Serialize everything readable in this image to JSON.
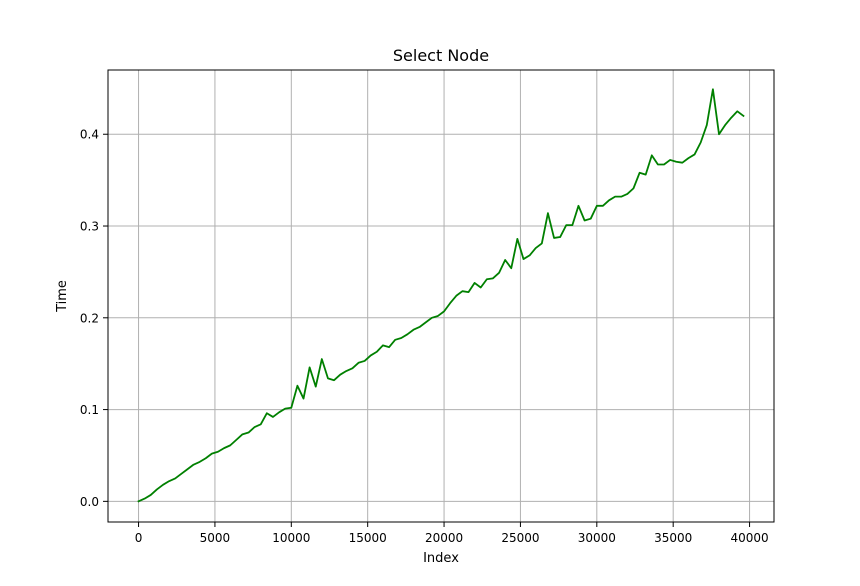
{
  "chart_data": {
    "type": "line",
    "title": "Select Node",
    "xlabel": "Index",
    "ylabel": "Time",
    "xlim": [
      -2000,
      41600
    ],
    "ylim": [
      -0.0225,
      0.47
    ],
    "xticks": [
      0,
      5000,
      10000,
      15000,
      20000,
      25000,
      30000,
      35000,
      40000
    ],
    "yticks": [
      0.0,
      0.1,
      0.2,
      0.3,
      0.4
    ],
    "xtick_labels": [
      "0",
      "5000",
      "10000",
      "15000",
      "20000",
      "25000",
      "30000",
      "35000",
      "40000"
    ],
    "ytick_labels": [
      "0.0",
      "0.1",
      "0.2",
      "0.3",
      "0.4"
    ],
    "grid": true,
    "line_color": "#008000",
    "series": [
      {
        "x": [
          0,
          400,
          800,
          1200,
          1600,
          2000,
          2400,
          2800,
          3200,
          3600,
          4000,
          4400,
          4800,
          5200,
          5600,
          6000,
          6400,
          6800,
          7200,
          7600,
          8000,
          8400,
          8800,
          9200,
          9600,
          10000,
          10400,
          10800,
          11200,
          11600,
          12000,
          12400,
          12800,
          13200,
          13600,
          14000,
          14400,
          14800,
          15200,
          15600,
          16000,
          16400,
          16800,
          17200,
          17600,
          18000,
          18400,
          18800,
          19200,
          19600,
          20000,
          20400,
          20800,
          21200,
          21600,
          22000,
          22400,
          22800,
          23200,
          23600,
          24000,
          24400,
          24800,
          25200,
          25600,
          26000,
          26400,
          26800,
          27200,
          27600,
          28000,
          28400,
          28800,
          29200,
          29600,
          30000,
          30400,
          30800,
          31200,
          31600,
          32000,
          32400,
          32800,
          33200,
          33600,
          34000,
          34400,
          34800,
          35200,
          35600,
          36000,
          36400,
          36800,
          37200,
          37600,
          38000,
          38400,
          38800,
          39200,
          39600
        ],
        "values": [
          0.0,
          0.003,
          0.007,
          0.013,
          0.018,
          0.022,
          0.025,
          0.03,
          0.035,
          0.04,
          0.043,
          0.047,
          0.052,
          0.054,
          0.058,
          0.061,
          0.067,
          0.073,
          0.075,
          0.081,
          0.084,
          0.096,
          0.092,
          0.097,
          0.101,
          0.102,
          0.126,
          0.112,
          0.146,
          0.125,
          0.155,
          0.134,
          0.132,
          0.138,
          0.142,
          0.145,
          0.151,
          0.153,
          0.159,
          0.163,
          0.17,
          0.168,
          0.176,
          0.178,
          0.182,
          0.187,
          0.19,
          0.195,
          0.2,
          0.202,
          0.207,
          0.216,
          0.224,
          0.229,
          0.228,
          0.238,
          0.233,
          0.242,
          0.243,
          0.249,
          0.263,
          0.254,
          0.286,
          0.264,
          0.268,
          0.276,
          0.281,
          0.314,
          0.287,
          0.288,
          0.301,
          0.301,
          0.322,
          0.306,
          0.308,
          0.322,
          0.322,
          0.328,
          0.332,
          0.332,
          0.335,
          0.341,
          0.358,
          0.356,
          0.377,
          0.367,
          0.367,
          0.372,
          0.37,
          0.369,
          0.374,
          0.378,
          0.391,
          0.41,
          0.449,
          0.4,
          0.41,
          0.418,
          0.425,
          0.42
        ]
      }
    ]
  }
}
